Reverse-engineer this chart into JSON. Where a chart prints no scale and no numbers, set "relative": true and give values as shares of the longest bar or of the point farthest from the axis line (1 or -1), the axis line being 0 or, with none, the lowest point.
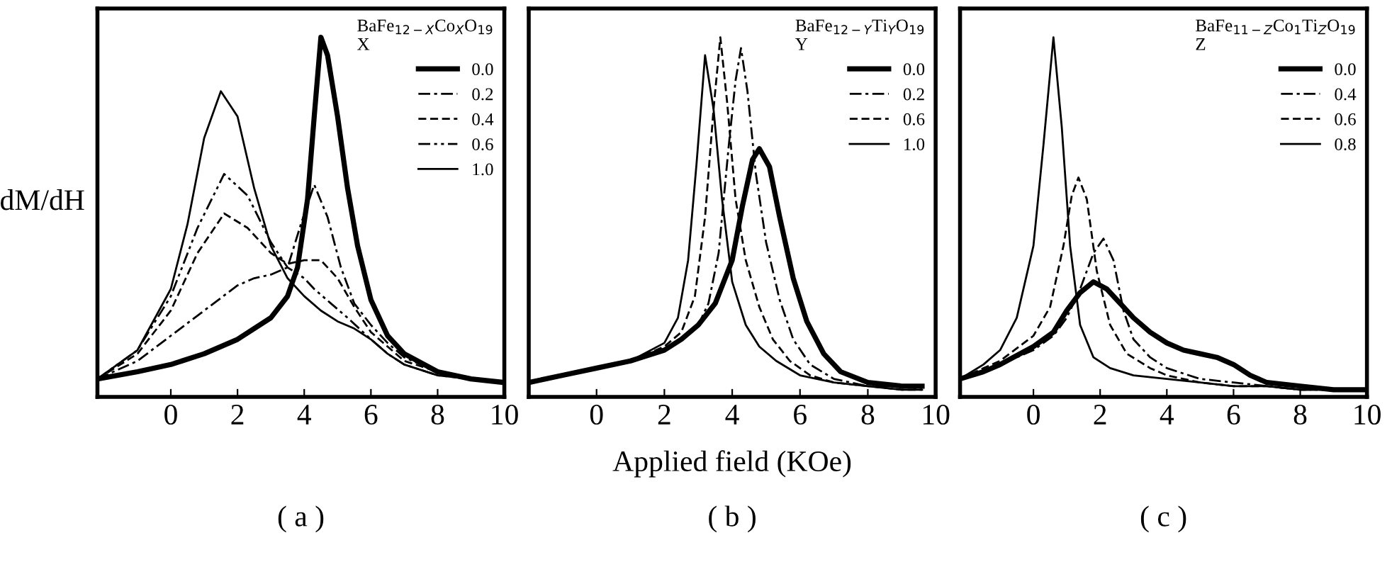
{
  "chart_data": [
    {
      "type": "line",
      "title": "( a )",
      "ylabel": "dM/dH",
      "legend_title": "BaFe$_{12−X}$Co$_{X}$O$_{19}$\nX",
      "relative": true,
      "xlim": [
        -2.2,
        10
      ],
      "xticks": [
        0,
        2,
        4,
        6,
        8,
        10
      ],
      "tick_labels": "x",
      "legend": "top right",
      "grid": false,
      "marker": "none",
      "series": [
        {
          "name": "0.0",
          "color": "#000000",
          "line_style": "solid",
          "x": [
            -2.2,
            -1,
            0,
            1,
            2,
            3,
            3.5,
            3.8,
            4.1,
            4.3,
            4.5,
            4.7,
            5,
            5.3,
            5.6,
            6,
            6.5,
            7,
            8,
            9,
            10
          ],
          "values": [
            0.05,
            0.07,
            0.09,
            0.12,
            0.16,
            0.22,
            0.28,
            0.36,
            0.55,
            0.78,
            1.0,
            0.95,
            0.78,
            0.58,
            0.42,
            0.27,
            0.17,
            0.12,
            0.07,
            0.05,
            0.04
          ]
        },
        {
          "name": "0.2",
          "color": "#000000",
          "line_style": "dashdot",
          "x": [
            -2.2,
            -1,
            0,
            1,
            2,
            2.5,
            3,
            3.5,
            3.9,
            4.3,
            4.7,
            5.1,
            5.5,
            6,
            6.5,
            7,
            8,
            9,
            10
          ],
          "values": [
            0.05,
            0.1,
            0.17,
            0.24,
            0.31,
            0.33,
            0.34,
            0.36,
            0.48,
            0.59,
            0.5,
            0.36,
            0.26,
            0.2,
            0.15,
            0.11,
            0.07,
            0.05,
            0.04
          ]
        },
        {
          "name": "0.4",
          "color": "#000000",
          "line_style": "dashed",
          "x": [
            -2.2,
            -1,
            0,
            0.8,
            1.6,
            2.3,
            3,
            3.5,
            4,
            4.5,
            5,
            5.5,
            6,
            6.5,
            7,
            8,
            9,
            10
          ],
          "values": [
            0.05,
            0.12,
            0.24,
            0.4,
            0.51,
            0.47,
            0.4,
            0.37,
            0.38,
            0.38,
            0.33,
            0.25,
            0.18,
            0.14,
            0.1,
            0.07,
            0.05,
            0.04
          ]
        },
        {
          "name": "0.6",
          "color": "#000000",
          "line_style": "dashdotdot",
          "x": [
            -2.2,
            -1,
            0,
            0.8,
            1.6,
            2.3,
            3,
            3.5,
            4,
            4.3,
            4.8,
            5.3,
            6,
            6.5,
            7,
            8,
            9,
            10
          ],
          "values": [
            0.05,
            0.13,
            0.28,
            0.47,
            0.62,
            0.56,
            0.43,
            0.36,
            0.33,
            0.3,
            0.26,
            0.22,
            0.16,
            0.12,
            0.09,
            0.06,
            0.05,
            0.04
          ]
        },
        {
          "name": "1.0",
          "color": "#000000",
          "line_style": "solid",
          "x": [
            -2.2,
            -1,
            0,
            0.5,
            1,
            1.5,
            2,
            2.5,
            3,
            3.5,
            4,
            4.5,
            5,
            5.5,
            6,
            6.5,
            7,
            8,
            9,
            10
          ],
          "values": [
            0.05,
            0.13,
            0.3,
            0.48,
            0.72,
            0.85,
            0.78,
            0.58,
            0.42,
            0.33,
            0.28,
            0.24,
            0.21,
            0.19,
            0.16,
            0.12,
            0.09,
            0.06,
            0.05,
            0.04
          ]
        }
      ]
    },
    {
      "type": "line",
      "title": "( b )",
      "xlabel": "Applied field (KOe)",
      "legend_title": "BaFe$_{12−Y}$Ti$_{Y}$O$_{19}$\nY",
      "relative": true,
      "xlim": [
        -2,
        10
      ],
      "xticks": [
        0,
        2,
        4,
        6,
        8,
        10
      ],
      "tick_labels": "x",
      "legend": "top right",
      "grid": false,
      "marker": "none",
      "series": [
        {
          "name": "0.0",
          "color": "#000000",
          "line_style": "solid",
          "x": [
            -2,
            -1,
            0,
            1,
            2,
            2.5,
            3,
            3.5,
            4,
            4.3,
            4.6,
            4.8,
            5.1,
            5.4,
            5.8,
            6.2,
            6.7,
            7.2,
            8,
            9,
            9.6
          ],
          "values": [
            0.04,
            0.06,
            0.08,
            0.1,
            0.13,
            0.16,
            0.2,
            0.26,
            0.38,
            0.53,
            0.66,
            0.69,
            0.64,
            0.5,
            0.33,
            0.21,
            0.12,
            0.07,
            0.04,
            0.03,
            0.03
          ]
        },
        {
          "name": "0.2",
          "color": "#000000",
          "line_style": "dashdot",
          "x": [
            -2,
            -1,
            0,
            1,
            2,
            2.5,
            3,
            3.3,
            3.6,
            3.9,
            4.1,
            4.26,
            4.45,
            4.7,
            5,
            5.4,
            5.8,
            6.3,
            7,
            8,
            9,
            9.6
          ],
          "values": [
            0.04,
            0.06,
            0.08,
            0.1,
            0.13,
            0.16,
            0.2,
            0.26,
            0.4,
            0.7,
            0.88,
            0.97,
            0.85,
            0.62,
            0.43,
            0.27,
            0.16,
            0.09,
            0.05,
            0.03,
            0.03,
            0.02
          ]
        },
        {
          "name": "0.6",
          "color": "#000000",
          "line_style": "dashed",
          "x": [
            -2,
            -1,
            0,
            1,
            2,
            2.5,
            2.9,
            3.2,
            3.45,
            3.65,
            3.85,
            4.1,
            4.4,
            4.8,
            5.2,
            5.7,
            6.3,
            7,
            8,
            9,
            9.6
          ],
          "values": [
            0.04,
            0.06,
            0.08,
            0.1,
            0.14,
            0.18,
            0.28,
            0.5,
            0.8,
            1.0,
            0.82,
            0.55,
            0.38,
            0.25,
            0.16,
            0.1,
            0.06,
            0.04,
            0.03,
            0.02,
            0.02
          ]
        },
        {
          "name": "1.0",
          "color": "#000000",
          "line_style": "solid",
          "x": [
            -2,
            -1,
            0,
            1,
            2,
            2.4,
            2.7,
            2.95,
            3.2,
            3.45,
            3.7,
            4,
            4.4,
            4.8,
            5.3,
            6,
            7,
            8,
            9,
            9.6
          ],
          "values": [
            0.04,
            0.06,
            0.08,
            0.1,
            0.15,
            0.22,
            0.38,
            0.65,
            0.95,
            0.8,
            0.55,
            0.32,
            0.2,
            0.14,
            0.1,
            0.06,
            0.04,
            0.03,
            0.02,
            0.02
          ]
        }
      ]
    },
    {
      "type": "line",
      "title": "( c )",
      "legend_title": "BaFe$_{11−Z}$Co$_{1}$Ti$_{Z}$O$_{19}$\nZ",
      "relative": true,
      "xlim": [
        -2.2,
        10
      ],
      "xticks": [
        0,
        2,
        4,
        6,
        8,
        10
      ],
      "tick_labels": "x",
      "legend": "top right",
      "grid": false,
      "marker": "none",
      "series": [
        {
          "name": "0.0",
          "color": "#000000",
          "line_style": "solid",
          "x": [
            -2.2,
            -1.5,
            -1,
            0,
            0.6,
            1,
            1.4,
            1.8,
            2.2,
            2.6,
            3,
            3.5,
            4,
            4.5,
            5,
            5.5,
            6,
            6.5,
            7,
            8,
            9,
            10
          ],
          "values": [
            0.05,
            0.07,
            0.09,
            0.14,
            0.18,
            0.24,
            0.29,
            0.32,
            0.3,
            0.26,
            0.22,
            0.18,
            0.15,
            0.13,
            0.12,
            0.11,
            0.09,
            0.06,
            0.04,
            0.03,
            0.02,
            0.02
          ]
        },
        {
          "name": "0.4",
          "color": "#000000",
          "line_style": "dashdot",
          "x": [
            -2.2,
            -1.5,
            -1,
            0,
            0.6,
            1,
            1.4,
            1.8,
            2.1,
            2.4,
            2.7,
            3,
            3.5,
            4,
            5,
            6,
            7,
            8,
            9,
            10
          ],
          "values": [
            0.05,
            0.07,
            0.09,
            0.13,
            0.17,
            0.22,
            0.3,
            0.4,
            0.44,
            0.38,
            0.24,
            0.16,
            0.11,
            0.08,
            0.05,
            0.04,
            0.03,
            0.02,
            0.02,
            0.02
          ]
        },
        {
          "name": "0.6",
          "color": "#000000",
          "line_style": "dashed",
          "x": [
            -2.2,
            -1.5,
            -1,
            0,
            0.5,
            0.9,
            1.15,
            1.35,
            1.6,
            1.9,
            2.3,
            2.8,
            3.5,
            4,
            5,
            6,
            7,
            8,
            9,
            10
          ],
          "values": [
            0.05,
            0.08,
            0.1,
            0.17,
            0.25,
            0.42,
            0.56,
            0.61,
            0.55,
            0.35,
            0.2,
            0.12,
            0.08,
            0.06,
            0.04,
            0.03,
            0.03,
            0.02,
            0.02,
            0.02
          ]
        },
        {
          "name": "0.8",
          "color": "#000000",
          "line_style": "solid",
          "x": [
            -2.2,
            -1.5,
            -1,
            -0.5,
            0,
            0.3,
            0.6,
            0.85,
            1.1,
            1.4,
            1.8,
            2.3,
            3,
            4,
            5,
            6,
            7,
            8,
            9,
            10
          ],
          "values": [
            0.05,
            0.09,
            0.13,
            0.22,
            0.42,
            0.7,
            1.0,
            0.75,
            0.42,
            0.2,
            0.11,
            0.08,
            0.06,
            0.05,
            0.04,
            0.03,
            0.03,
            0.02,
            0.02,
            0.02
          ]
        }
      ]
    }
  ]
}
